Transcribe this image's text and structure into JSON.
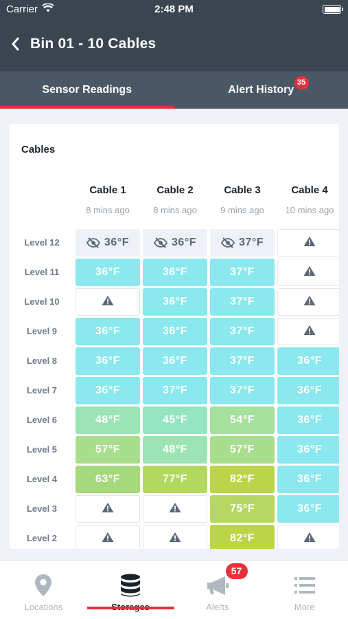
{
  "status_bar": {
    "carrier": "Carrier",
    "time": "2:48 PM"
  },
  "header": {
    "title": "Bin 01 - 10 Cables"
  },
  "tabs": [
    {
      "label": "Sensor Readings",
      "active": true
    },
    {
      "label": "Alert History",
      "badge": "35"
    }
  ],
  "card": {
    "title": "Cables",
    "columns": [
      {
        "name": "Cable 1",
        "updated": "8 mins ago"
      },
      {
        "name": "Cable 2",
        "updated": "8 mins ago"
      },
      {
        "name": "Cable 3",
        "updated": "9 mins ago"
      },
      {
        "name": "Cable 4",
        "updated": "10 mins ago"
      }
    ],
    "rows": [
      {
        "label": "Level 12",
        "cells": [
          {
            "t": "36°F",
            "s": "offline"
          },
          {
            "t": "36°F",
            "s": "offline"
          },
          {
            "t": "37°F",
            "s": "offline"
          },
          {
            "t": "",
            "s": "missing"
          }
        ]
      },
      {
        "label": "Level 11",
        "cells": [
          {
            "t": "36°F",
            "c": "#8ae8ee"
          },
          {
            "t": "36°F",
            "c": "#8ae8ee"
          },
          {
            "t": "37°F",
            "c": "#8ae8ee"
          },
          {
            "t": "",
            "s": "missing"
          }
        ]
      },
      {
        "label": "Level 10",
        "cells": [
          {
            "t": "",
            "s": "missing"
          },
          {
            "t": "36°F",
            "c": "#8ae8ee"
          },
          {
            "t": "37°F",
            "c": "#8ae8ee"
          },
          {
            "t": "",
            "s": "missing"
          }
        ]
      },
      {
        "label": "Level 9",
        "cells": [
          {
            "t": "36°F",
            "c": "#8ae8ee"
          },
          {
            "t": "36°F",
            "c": "#8ae8ee"
          },
          {
            "t": "37°F",
            "c": "#8ae8ee"
          },
          {
            "t": "",
            "s": "missing"
          }
        ]
      },
      {
        "label": "Level 8",
        "cells": [
          {
            "t": "36°F",
            "c": "#8ae8ee"
          },
          {
            "t": "36°F",
            "c": "#8ae8ee"
          },
          {
            "t": "37°F",
            "c": "#8ae8ee"
          },
          {
            "t": "36°F",
            "c": "#8ae8ee"
          }
        ]
      },
      {
        "label": "Level 7",
        "cells": [
          {
            "t": "36°F",
            "c": "#8ae8ee"
          },
          {
            "t": "37°F",
            "c": "#8ae8ee"
          },
          {
            "t": "37°F",
            "c": "#8ae8ee"
          },
          {
            "t": "36°F",
            "c": "#8ae8ee"
          }
        ]
      },
      {
        "label": "Level 6",
        "cells": [
          {
            "t": "48°F",
            "c": "#9de4b4"
          },
          {
            "t": "45°F",
            "c": "#94e5c2"
          },
          {
            "t": "54°F",
            "c": "#a5e09c"
          },
          {
            "t": "36°F",
            "c": "#8ae8ee"
          }
        ]
      },
      {
        "label": "Level 5",
        "cells": [
          {
            "t": "57°F",
            "c": "#a9de8e"
          },
          {
            "t": "48°F",
            "c": "#9de4b4"
          },
          {
            "t": "57°F",
            "c": "#a9de8e"
          },
          {
            "t": "36°F",
            "c": "#8ae8ee"
          }
        ]
      },
      {
        "label": "Level 4",
        "cells": [
          {
            "t": "63°F",
            "c": "#a6d87c"
          },
          {
            "t": "77°F",
            "c": "#b3d860"
          },
          {
            "t": "82°F",
            "c": "#bcd548"
          },
          {
            "t": "36°F",
            "c": "#8ae8ee"
          }
        ]
      },
      {
        "label": "Level 3",
        "cells": [
          {
            "t": "",
            "s": "missing"
          },
          {
            "t": "",
            "s": "missing"
          },
          {
            "t": "75°F",
            "c": "#b4d862"
          },
          {
            "t": "36°F",
            "c": "#8ae8ee"
          }
        ]
      },
      {
        "label": "Level 2",
        "cells": [
          {
            "t": "",
            "s": "missing"
          },
          {
            "t": "",
            "s": "missing"
          },
          {
            "t": "82°F",
            "c": "#bcd548"
          },
          {
            "t": "",
            "s": "missing"
          }
        ]
      }
    ]
  },
  "bottom_nav": [
    {
      "label": "Locations",
      "icon": "location-pin-icon"
    },
    {
      "label": "Storages",
      "icon": "database-icon",
      "active": true
    },
    {
      "label": "Alerts",
      "icon": "megaphone-icon",
      "count": "57"
    },
    {
      "label": "More",
      "icon": "list-icon"
    }
  ]
}
